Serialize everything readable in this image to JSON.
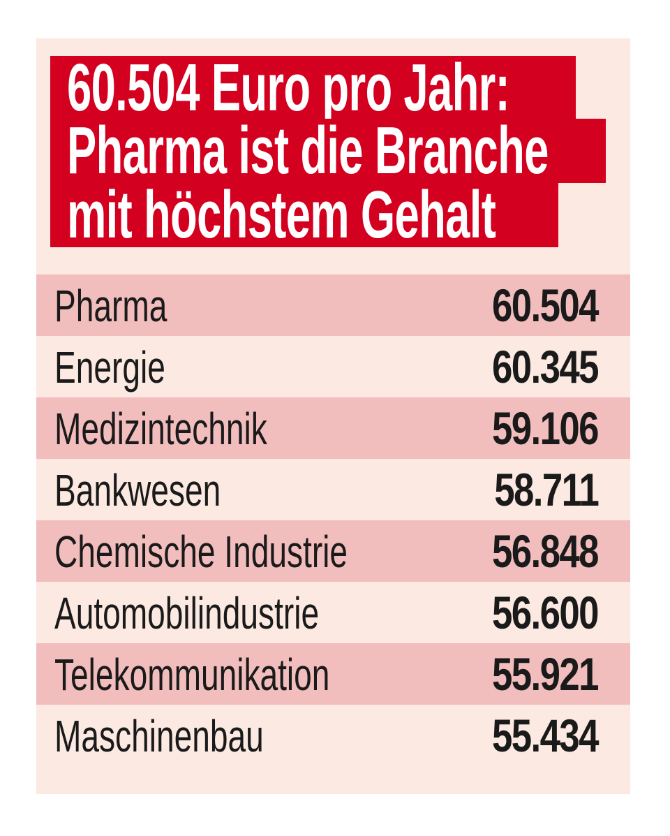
{
  "title": {
    "lines": [
      "60.504 Euro pro Jahr:",
      "Pharma ist die Branche",
      "mit höchstem Gehalt"
    ]
  },
  "colors": {
    "title_bg": "#d4001f",
    "panel_bg": "#fbe9e2",
    "row_shaded": "#f2bdbd"
  },
  "chart_data": {
    "type": "table",
    "title": "60.504 Euro pro Jahr: Pharma ist die Branche mit höchstem Gehalt",
    "rows": [
      {
        "label": "Pharma",
        "value": "60.504"
      },
      {
        "label": "Energie",
        "value": "60.345"
      },
      {
        "label": "Medizintechnik",
        "value": "59.106"
      },
      {
        "label": "Bankwesen",
        "value": "58.711"
      },
      {
        "label": "Chemische Industrie",
        "value": "56.848"
      },
      {
        "label": "Automobilindustrie",
        "value": "56.600"
      },
      {
        "label": "Telekommunikation",
        "value": "55.921"
      },
      {
        "label": "Maschinenbau",
        "value": "55.434"
      }
    ]
  }
}
